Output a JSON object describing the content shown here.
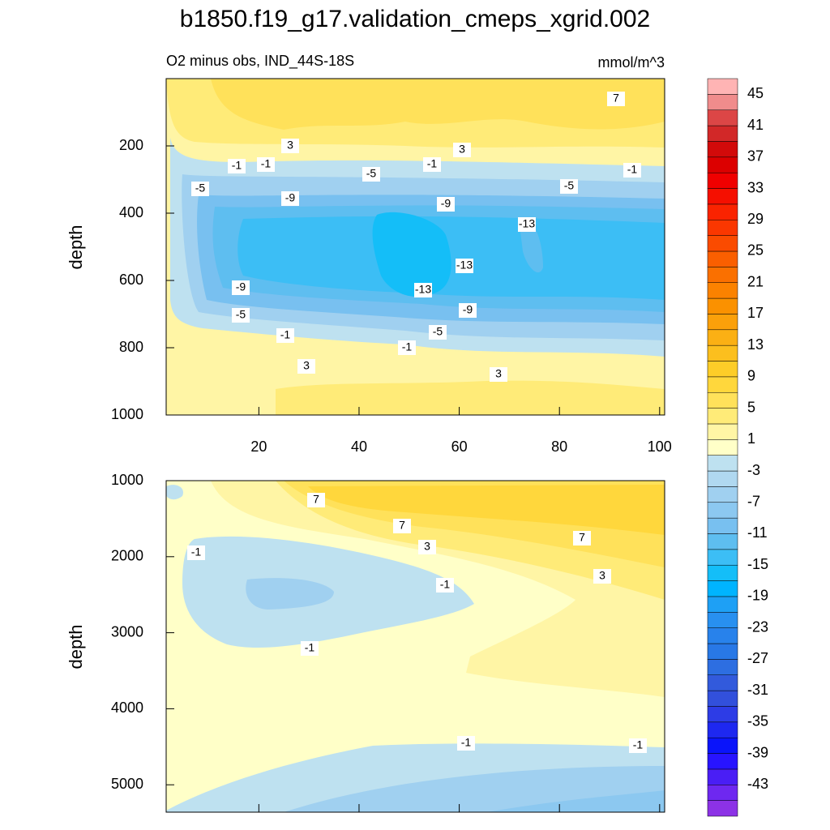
{
  "title": "b1850.f19_g17.validation_cmeps_xgrid.002",
  "chart_data": [
    {
      "type": "contour",
      "subtitle": "O2 minus obs, IND_44S-18S",
      "units": "mmol/m^3",
      "y_label": "depth",
      "xlim": [
        1.5,
        101
      ],
      "xticks": [
        20,
        40,
        60,
        80,
        100
      ],
      "ylim": [
        1000,
        0
      ],
      "yticks": [
        200,
        400,
        600,
        800,
        1000
      ],
      "contour_labels": [
        7,
        3,
        3,
        -1,
        -1,
        -1,
        -1,
        -5,
        -5,
        -5,
        -9,
        -9,
        -13,
        -13,
        -13,
        -9,
        -9,
        -5,
        -5,
        -1,
        -1,
        3,
        3
      ]
    },
    {
      "type": "contour",
      "y_label": "depth",
      "xlim": [
        1.5,
        101
      ],
      "xticks": [
        20,
        40,
        60,
        80,
        100
      ],
      "ylim": [
        5360,
        1000
      ],
      "yticks": [
        1000,
        2000,
        3000,
        4000,
        5000
      ],
      "contour_labels": [
        7,
        7,
        7,
        3,
        3,
        -1,
        -1,
        -1,
        -1,
        -1
      ]
    }
  ],
  "colorbar": {
    "lim": [
      -47,
      47
    ],
    "ticks": [
      45,
      41,
      37,
      33,
      29,
      25,
      21,
      17,
      13,
      9,
      5,
      1,
      -3,
      -7,
      -11,
      -15,
      -19,
      -23,
      -27,
      -31,
      -35,
      -39,
      -43
    ],
    "colors": [
      "#8c32e6",
      "#6e28f0",
      "#4a1ef5",
      "#2814ff",
      "#0a14fa",
      "#1e28f0",
      "#2d3ce6",
      "#3250dc",
      "#325adc",
      "#2d6ee1",
      "#2878e6",
      "#2882eb",
      "#2890f0",
      "#1ea0f5",
      "#00b4ff",
      "#14bef8",
      "#3cbef5",
      "#5ebef0",
      "#78c0f0",
      "#8cc8f0",
      "#a0d0f0",
      "#b0d8f0",
      "#bee1f0",
      "#ffffc8",
      "#fff5a5",
      "#ffeb78",
      "#ffe15a",
      "#ffd73c",
      "#fdcd28",
      "#fcbf1e",
      "#fbb014",
      "#fba00a",
      "#fb9100",
      "#fb8200",
      "#fa7000",
      "#fa5f00",
      "#fa4b00",
      "#fa3700",
      "#fa2300",
      "#f50f00",
      "#f00000",
      "#dc0000",
      "#d20a0a",
      "#d22828",
      "#dc4646",
      "#f08c8c",
      "#ffb4b4"
    ]
  }
}
